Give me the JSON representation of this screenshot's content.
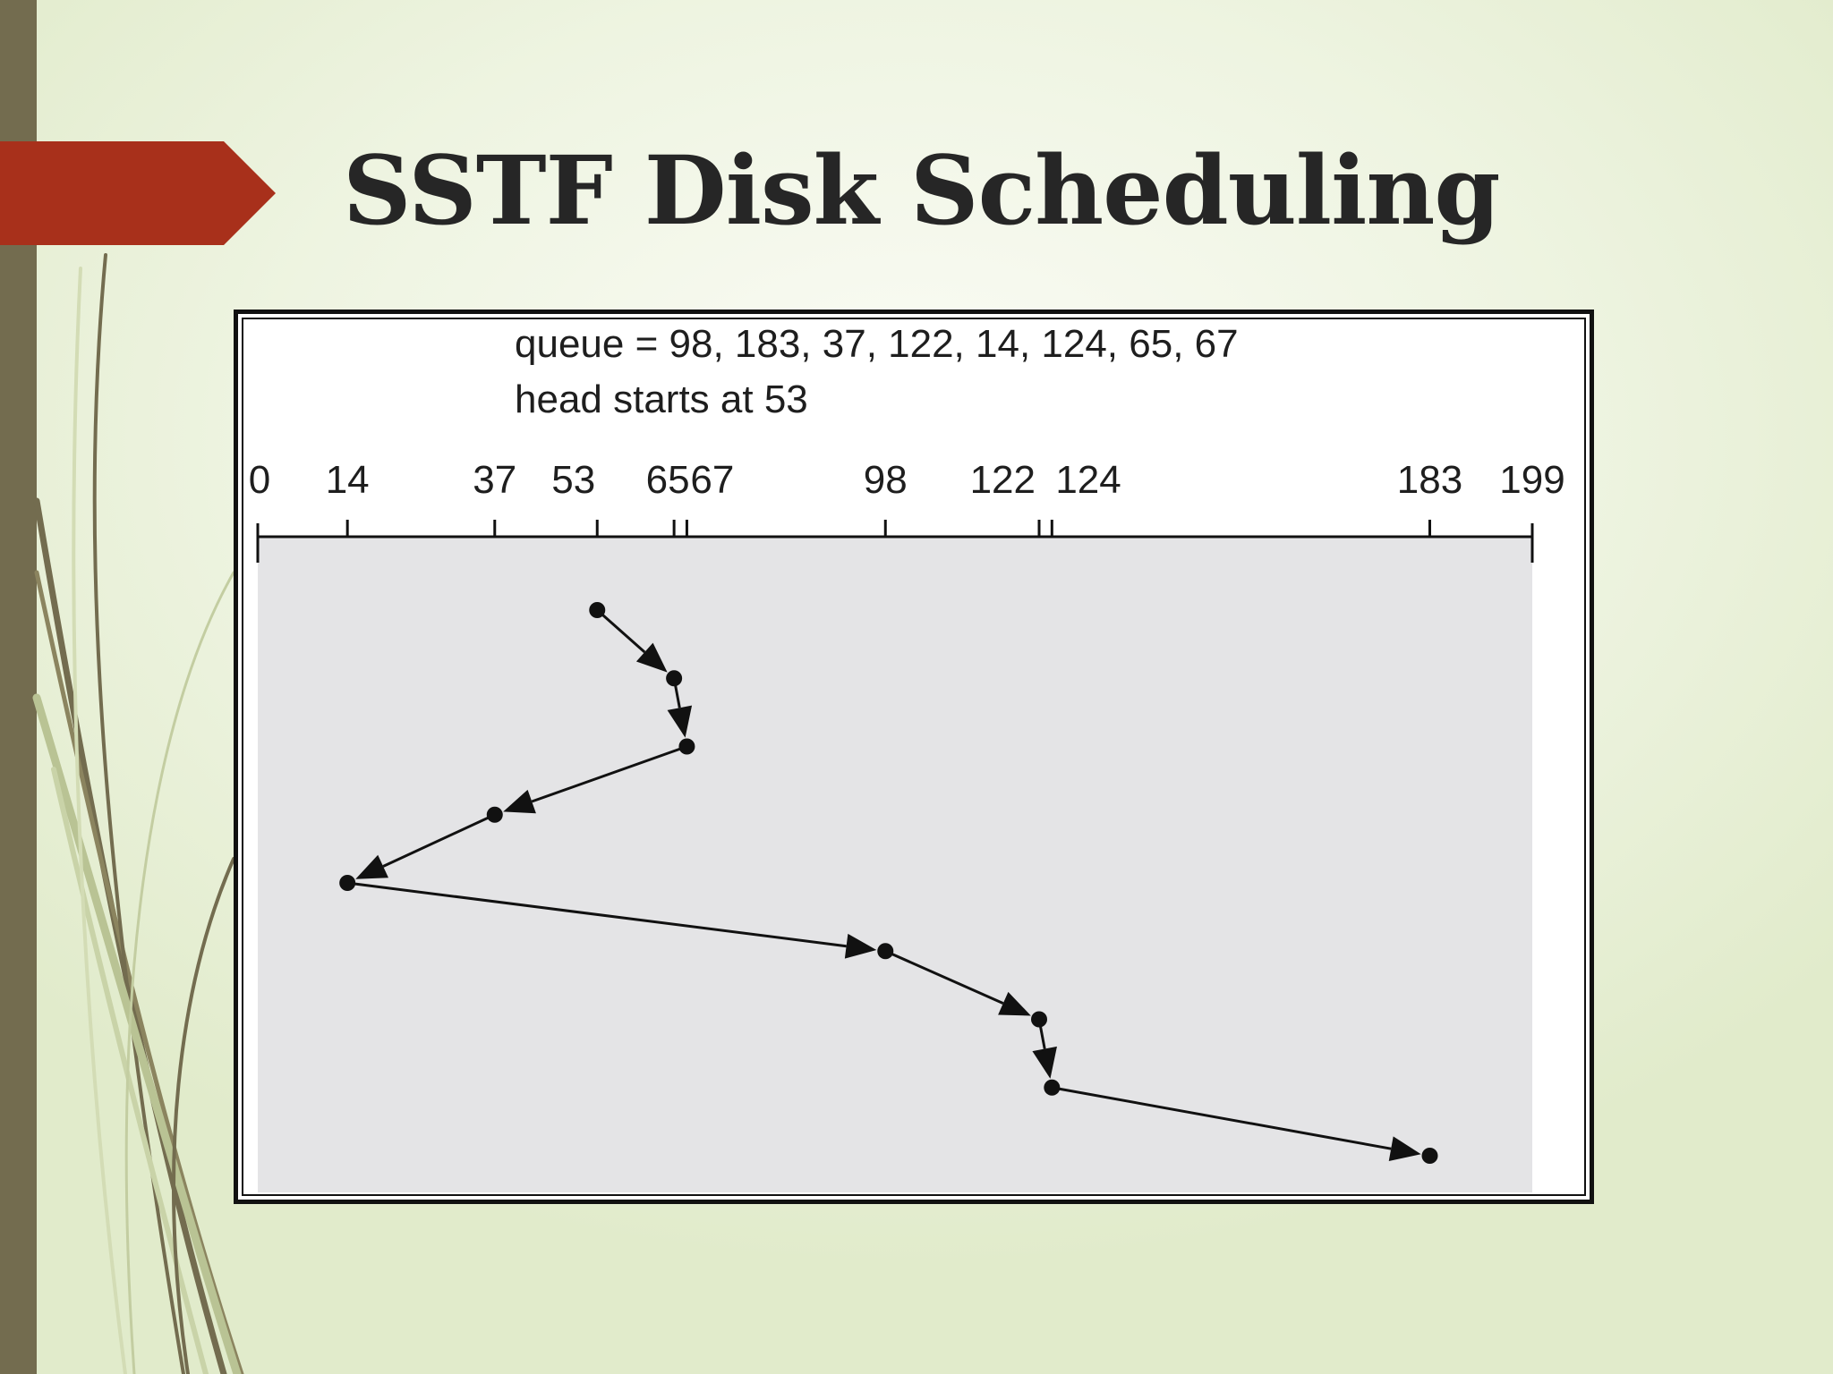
{
  "slide": {
    "title": "SSTF Disk Scheduling"
  },
  "colors": {
    "left_bar": "#736c4f",
    "title_arrow": "#a8301b",
    "plot_background": "#e4e4e6",
    "ink": "#111111"
  },
  "chart_data": {
    "type": "line",
    "caption_lines": [
      "queue = 98, 183, 37, 122, 14, 124, 65, 67",
      "head starts at 53"
    ],
    "axis_range": [
      0,
      199
    ],
    "tick_values": [
      0,
      14,
      37,
      53,
      65,
      67,
      98,
      122,
      124,
      183,
      199
    ],
    "tick_labels": [
      "0",
      "14",
      "37",
      "53",
      "65",
      "67",
      "98",
      "122",
      "124",
      "183",
      "199"
    ],
    "service_order": [
      53,
      65,
      67,
      37,
      14,
      98,
      122,
      124,
      183
    ],
    "arrows": true
  }
}
